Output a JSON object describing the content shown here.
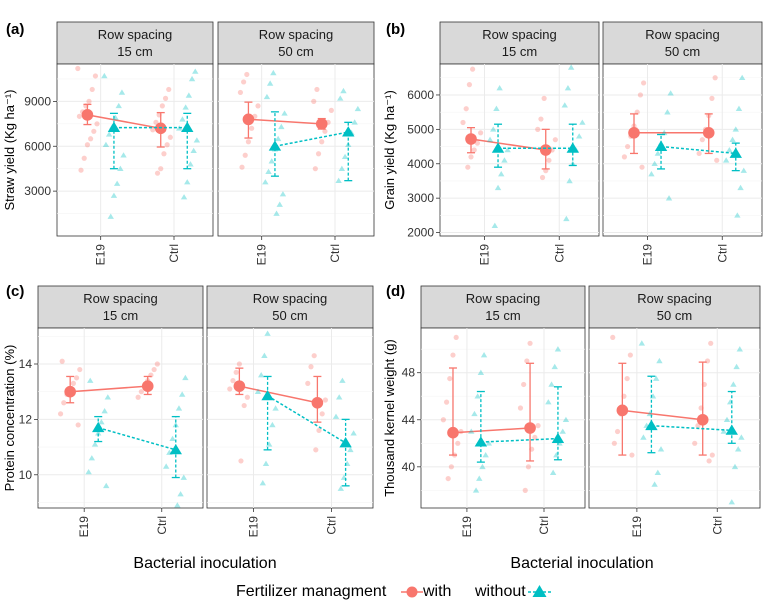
{
  "figure": {
    "x_axis_title": "Bacterial inoculation",
    "legend": {
      "title": "Fertilizer  managment",
      "with_label": "with",
      "without_label": "without",
      "with_color": "#F8766D",
      "without_color": "#00BFC4"
    }
  },
  "chart_data": [
    {
      "tag": "(a)",
      "type": "scatter",
      "ylabel": "Straw yield (Kg ha⁻¹)",
      "ylim": [
        0,
        11500
      ],
      "yticks": [
        3000,
        6000,
        9000
      ],
      "categories": [
        "E19",
        "Ctrl"
      ],
      "facets": [
        {
          "strip": [
            "Row spacing",
            "15 cm"
          ],
          "series": [
            {
              "name": "with",
              "means": [
                8100,
                7200
              ],
              "lower": [
                7450,
                5950
              ],
              "upper": [
                8800,
                8250
              ],
              "raw": [
                [
                  11200,
                  10700,
                  9800,
                  9000,
                  8700,
                  8300,
                  8000,
                  7500,
                  7000,
                  6500,
                  6100,
                  5200,
                  4400
                ],
                [
                  9800,
                  9200,
                  8700,
                  8100,
                  7600,
                  7100,
                  6600,
                  6100,
                  5500,
                  4500,
                  4200
                ]
              ]
            },
            {
              "name": "without",
              "means": [
                7250,
                7250
              ],
              "lower": [
                4500,
                4500
              ],
              "upper": [
                8200,
                8200
              ],
              "raw": [
                [
                  10700,
                  9600,
                  8700,
                  7900,
                  7300,
                  6800,
                  6100,
                  5400,
                  4500,
                  3500,
                  2700,
                  1300
                ],
                [
                  11000,
                  10500,
                  9400,
                  8600,
                  7800,
                  7200,
                  6400,
                  5700,
                  4800,
                  3600,
                  2600
                ]
              ]
            }
          ]
        },
        {
          "strip": [
            "Row spacing",
            "50 cm"
          ],
          "series": [
            {
              "name": "with",
              "means": [
                7800,
                7500
              ],
              "lower": [
                6550,
                7150
              ],
              "upper": [
                8950,
                7850
              ],
              "raw": [
                [
                  10800,
                  10300,
                  9600,
                  8700,
                  8000,
                  7200,
                  6300,
                  5400,
                  4600
                ],
                [
                  9800,
                  9000,
                  8400,
                  7600,
                  7000,
                  6300,
                  5500,
                  4500
                ]
              ]
            },
            {
              "name": "without",
              "means": [
                6000,
                6950
              ],
              "lower": [
                4000,
                3700
              ],
              "upper": [
                8300,
                7600
              ],
              "raw": [
                [
                  10900,
                  10200,
                  9300,
                  8200,
                  7300,
                  6500,
                  5800,
                  5000,
                  4300,
                  3600,
                  2800,
                  2100,
                  1500
                ],
                [
                  9700,
                  9200,
                  8500,
                  7600,
                  6900,
                  6100,
                  5300,
                  4500,
                  3700
                ]
              ]
            }
          ]
        }
      ]
    },
    {
      "tag": "(b)",
      "type": "scatter",
      "ylabel": "Grain yield (Kg ha⁻¹)",
      "ylim": [
        1900,
        6900
      ],
      "yticks": [
        2000,
        3000,
        4000,
        5000,
        6000
      ],
      "categories": [
        "E19",
        "Ctrl"
      ],
      "facets": [
        {
          "strip": [
            "Row spacing",
            "15 cm"
          ],
          "series": [
            {
              "name": "with",
              "means": [
                4720,
                4400
              ],
              "lower": [
                4320,
                3850
              ],
              "upper": [
                5050,
                5000
              ],
              "raw": [
                [
                  6750,
                  6300,
                  5600,
                  5200,
                  4900,
                  4600,
                  4400,
                  4200,
                  3900
                ],
                [
                  5900,
                  5300,
                  5000,
                  4700,
                  4400,
                  4100,
                  3800,
                  3600
                ]
              ]
            },
            {
              "name": "without",
              "means": [
                4450,
                4450
              ],
              "lower": [
                3900,
                3950
              ],
              "upper": [
                5150,
                5150
              ],
              "raw": [
                [
                  6200,
                  5600,
                  5000,
                  4700,
                  4400,
                  4100,
                  3700,
                  3300,
                  2200
                ],
                [
                  6800,
                  6200,
                  5700,
                  5200,
                  4800,
                  4400,
                  4000,
                  3500,
                  2400
                ]
              ]
            }
          ]
        },
        {
          "strip": [
            "Row spacing",
            "50 cm"
          ],
          "series": [
            {
              "name": "with",
              "means": [
                4900,
                4900
              ],
              "lower": [
                4300,
                4300
              ],
              "upper": [
                5450,
                5450
              ],
              "raw": [
                [
                  6350,
                  6000,
                  5500,
                  5100,
                  4800,
                  4500,
                  4200,
                  3900
                ],
                [
                  6500,
                  5900,
                  5400,
                  5000,
                  4700,
                  4300,
                  4100
                ]
              ]
            },
            {
              "name": "without",
              "means": [
                4500,
                4300
              ],
              "lower": [
                3850,
                3800
              ],
              "upper": [
                4850,
                4600
              ],
              "raw": [
                [
                  6050,
                  5500,
                  4900,
                  4600,
                  4300,
                  4000,
                  3700,
                  3000
                ],
                [
                  6500,
                  5600,
                  5000,
                  4700,
                  4400,
                  4100,
                  3800,
                  3300,
                  2500
                ]
              ]
            }
          ]
        }
      ]
    },
    {
      "tag": "(c)",
      "type": "scatter",
      "ylabel": "Protein  concentration (%)",
      "ylim": [
        8.8,
        15.3
      ],
      "yticks": [
        10,
        12,
        14
      ],
      "categories": [
        "E19",
        "Ctrl"
      ],
      "facets": [
        {
          "strip": [
            "Row spacing",
            "15 cm"
          ],
          "series": [
            {
              "name": "with",
              "means": [
                13.0,
                13.2
              ],
              "lower": [
                12.6,
                12.9
              ],
              "upper": [
                13.55,
                13.55
              ],
              "raw": [
                [
                  14.1,
                  13.8,
                  13.5,
                  13.3,
                  13.1,
                  12.9,
                  12.6,
                  12.2,
                  11.8
                ],
                [
                  14.0,
                  13.8,
                  13.6,
                  13.4,
                  13.2,
                  13.0,
                  12.8
                ]
              ]
            },
            {
              "name": "without",
              "means": [
                11.7,
                10.9
              ],
              "lower": [
                11.2,
                9.9
              ],
              "upper": [
                12.1,
                12.1
              ],
              "raw": [
                [
                  13.4,
                  12.8,
                  12.3,
                  11.9,
                  11.5,
                  11.1,
                  10.6,
                  10.1,
                  9.6
                ],
                [
                  13.5,
                  12.9,
                  12.4,
                  11.8,
                  11.3,
                  10.8,
                  10.3,
                  9.9,
                  9.3,
                  8.9
                ]
              ]
            }
          ]
        },
        {
          "strip": [
            "Row spacing",
            "50 cm"
          ],
          "series": [
            {
              "name": "with",
              "means": [
                13.2,
                12.6
              ],
              "lower": [
                12.9,
                11.9
              ],
              "upper": [
                13.85,
                13.55
              ],
              "raw": [
                [
                  14.0,
                  13.7,
                  13.4,
                  13.1,
                  12.8,
                  12.5,
                  10.5
                ],
                [
                  14.3,
                  13.9,
                  13.3,
                  12.7,
                  12.2,
                  11.6,
                  10.9
                ]
              ]
            },
            {
              "name": "without",
              "means": [
                12.85,
                11.15
              ],
              "lower": [
                10.9,
                9.6
              ],
              "upper": [
                13.55,
                12.0
              ],
              "raw": [
                [
                  15.1,
                  14.3,
                  13.6,
                  13.0,
                  12.4,
                  11.8,
                  11.1,
                  10.4,
                  9.7
                ],
                [
                  13.4,
                  12.8,
                  12.1,
                  11.5,
                  10.9,
                  10.4,
                  9.9,
                  9.5
                ]
              ]
            }
          ]
        }
      ]
    },
    {
      "tag": "(d)",
      "type": "scatter",
      "ylabel": "Thousand kernel weight (g)",
      "ylim": [
        36.5,
        51.8
      ],
      "yticks": [
        40,
        44,
        48
      ],
      "categories": [
        "E19",
        "Ctrl"
      ],
      "facets": [
        {
          "strip": [
            "Row spacing",
            "15 cm"
          ],
          "series": [
            {
              "name": "with",
              "means": [
                42.9,
                43.3
              ],
              "lower": [
                41.0,
                40.5
              ],
              "upper": [
                48.4,
                48.8
              ],
              "raw": [
                [
                  51.0,
                  49.5,
                  47.5,
                  45.5,
                  44.0,
                  43.0,
                  42.0,
                  41.0,
                  40.0,
                  39.0
                ],
                [
                  50.5,
                  49.0,
                  47.0,
                  45.0,
                  43.5,
                  42.5,
                  41.5,
                  40.0,
                  38.0
                ]
              ]
            },
            {
              "name": "without",
              "means": [
                42.1,
                42.4
              ],
              "lower": [
                40.4,
                40.6
              ],
              "upper": [
                46.4,
                46.8
              ],
              "raw": [
                [
                  49.5,
                  48.0,
                  46.0,
                  44.5,
                  43.0,
                  42.0,
                  41.0,
                  40.0,
                  39.0,
                  38.0
                ],
                [
                  50.0,
                  48.5,
                  47.0,
                  45.5,
                  44.0,
                  43.0,
                  42.0,
                  41.0,
                  39.5
                ]
              ]
            }
          ]
        },
        {
          "strip": [
            "Row spacing",
            "50 cm"
          ],
          "series": [
            {
              "name": "with",
              "means": [
                44.8,
                44.0
              ],
              "lower": [
                41.0,
                41.0
              ],
              "upper": [
                48.8,
                48.9
              ],
              "raw": [
                [
                  51.0,
                  49.5,
                  47.5,
                  46.0,
                  44.5,
                  43.0,
                  42.0,
                  41.0
                ],
                [
                  50.5,
                  49.0,
                  47.0,
                  45.0,
                  43.5,
                  42.0,
                  41.0,
                  40.5
                ]
              ]
            },
            {
              "name": "without",
              "means": [
                43.5,
                43.1
              ],
              "lower": [
                41.2,
                42.0
              ],
              "upper": [
                47.7,
                46.4
              ],
              "raw": [
                [
                  50.5,
                  49.0,
                  47.5,
                  46.0,
                  44.5,
                  43.5,
                  42.5,
                  41.5,
                  39.5,
                  38.5
                ],
                [
                  50.0,
                  48.5,
                  47.0,
                  45.5,
                  44.0,
                  43.0,
                  42.5,
                  41.5,
                  40.0,
                  37.0
                ]
              ]
            }
          ]
        }
      ]
    }
  ]
}
